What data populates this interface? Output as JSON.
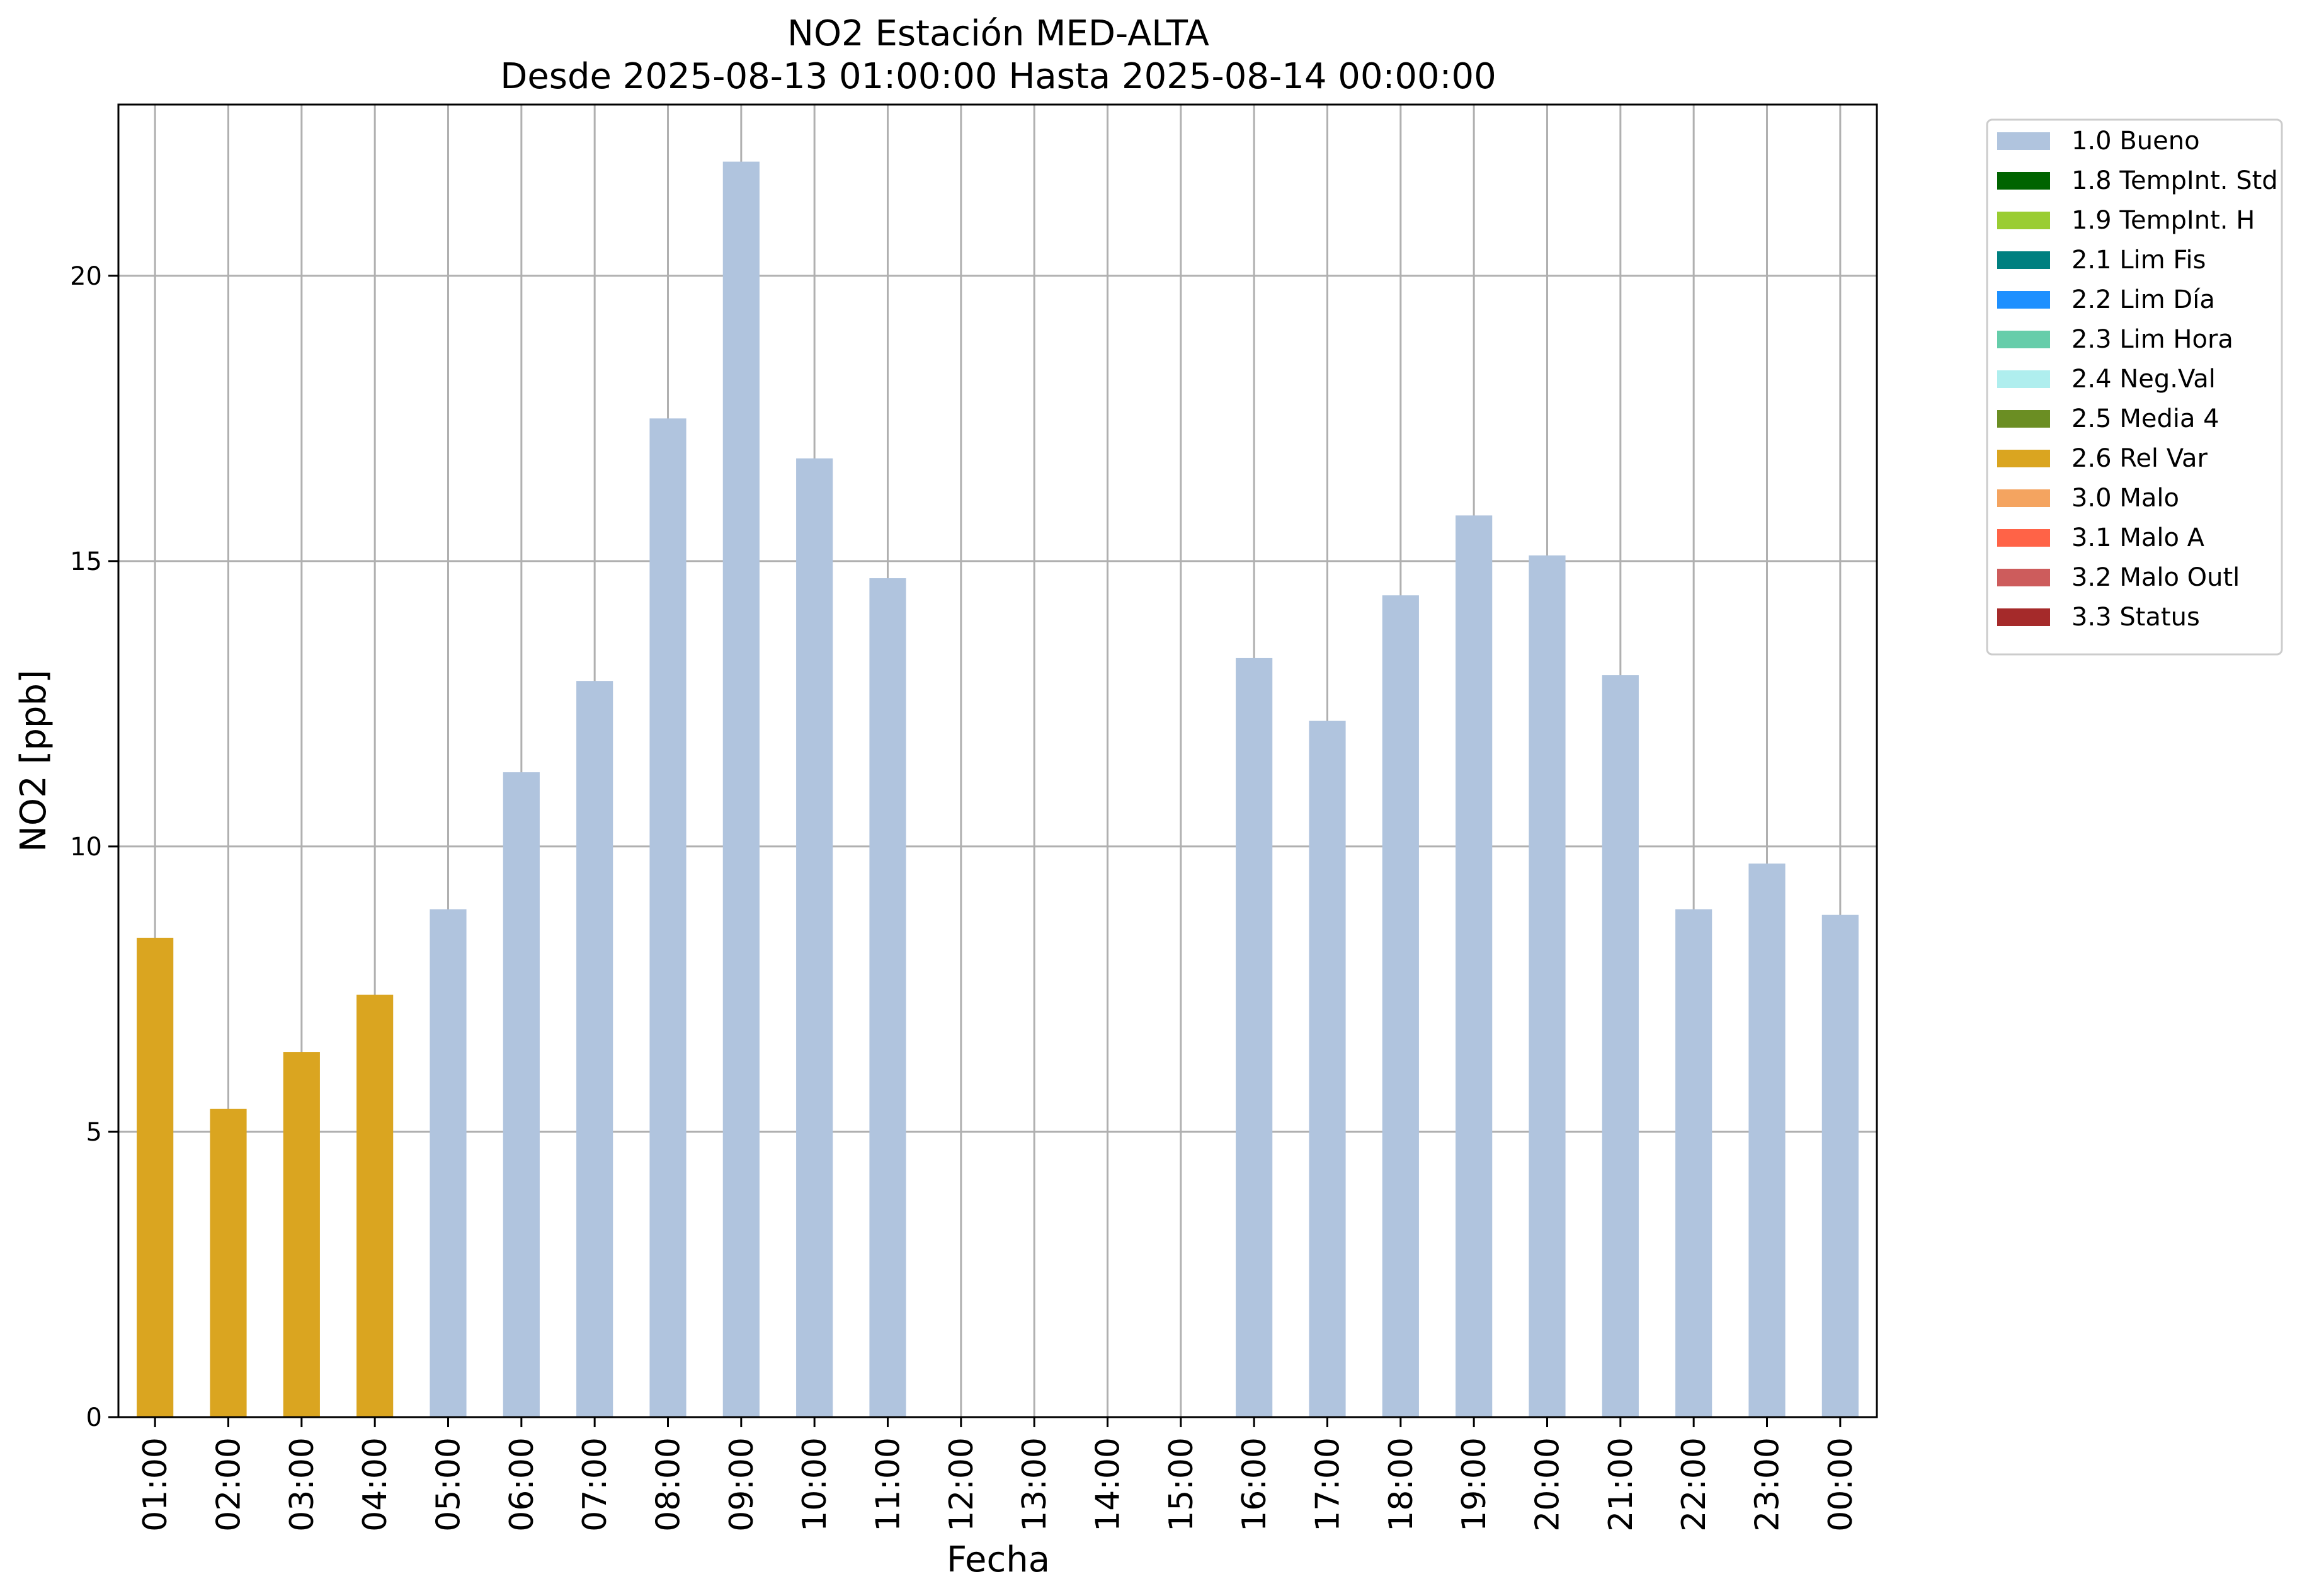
{
  "chart_data": {
    "type": "bar",
    "title": "NO2 Estación MED-ALTA",
    "subtitle": "Desde 2025-08-13 01:00:00 Hasta 2025-08-14 00:00:00",
    "xlabel": "Fecha",
    "ylabel": "NO2 [ppb]",
    "ylim": [
      0,
      23
    ],
    "yticks": [
      0,
      5,
      10,
      15,
      20
    ],
    "grid": true,
    "legend_position": "outside-top-right",
    "categories": [
      "01:00",
      "02:00",
      "03:00",
      "04:00",
      "05:00",
      "06:00",
      "07:00",
      "08:00",
      "09:00",
      "10:00",
      "11:00",
      "12:00",
      "13:00",
      "14:00",
      "15:00",
      "16:00",
      "17:00",
      "18:00",
      "19:00",
      "20:00",
      "21:00",
      "22:00",
      "23:00",
      "00:00"
    ],
    "values": [
      8.4,
      5.4,
      6.4,
      7.4,
      8.9,
      11.3,
      12.9,
      17.5,
      22.0,
      16.8,
      14.7,
      null,
      null,
      null,
      null,
      13.3,
      12.2,
      14.4,
      15.8,
      15.1,
      13.0,
      8.9,
      9.7,
      8.8
    ],
    "flags": [
      "2.6 Rel Var",
      "2.6 Rel Var",
      "2.6 Rel Var",
      "2.6 Rel Var",
      "1.0 Bueno",
      "1.0 Bueno",
      "1.0 Bueno",
      "1.0 Bueno",
      "1.0 Bueno",
      "1.0 Bueno",
      "1.0 Bueno",
      null,
      null,
      null,
      null,
      "1.0 Bueno",
      "1.0 Bueno",
      "1.0 Bueno",
      "1.0 Bueno",
      "1.0 Bueno",
      "1.0 Bueno",
      "1.0 Bueno",
      "1.0 Bueno",
      "1.0 Bueno"
    ],
    "legend": [
      {
        "label": "1.0 Bueno",
        "color": "#b0c4de"
      },
      {
        "label": "1.8 TempInt. Std",
        "color": "#006400"
      },
      {
        "label": "1.9 TempInt. H",
        "color": "#9acd32"
      },
      {
        "label": "2.1 Lim Fis",
        "color": "#008080"
      },
      {
        "label": "2.2 Lim Día",
        "color": "#1e90ff"
      },
      {
        "label": "2.3 Lim Hora",
        "color": "#66cdaa"
      },
      {
        "label": "2.4 Neg.Val",
        "color": "#afeeee"
      },
      {
        "label": "2.5 Media 4",
        "color": "#6b8e23"
      },
      {
        "label": "2.6 Rel Var",
        "color": "#daa520"
      },
      {
        "label": "3.0 Malo",
        "color": "#f4a460"
      },
      {
        "label": "3.1 Malo A",
        "color": "#ff6347"
      },
      {
        "label": "3.2 Malo Outl",
        "color": "#cd5c5c"
      },
      {
        "label": "3.3 Status",
        "color": "#a52a2a"
      }
    ]
  }
}
